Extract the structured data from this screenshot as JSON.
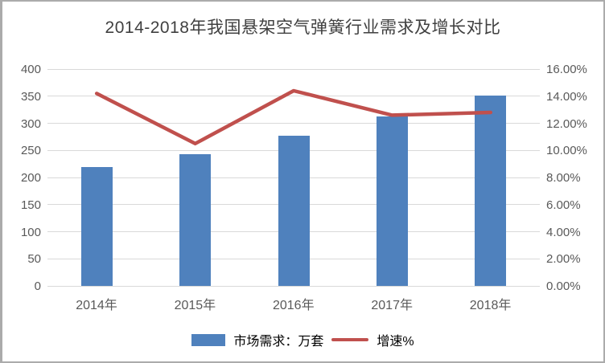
{
  "title": "2014-2018年我国悬架空气弹簧行业需求及增长对比",
  "colors": {
    "bar": "#4F81BD",
    "line": "#C0504D",
    "grid": "#D9D9D9",
    "axis_text": "#595959",
    "title_text": "#404040",
    "border": "#ABABAB"
  },
  "chart_data": {
    "type": "bar+line combo",
    "title": "2014-2018年我国悬架空气弹簧行业需求及增长对比",
    "categories": [
      "2014年",
      "2015年",
      "2016年",
      "2017年",
      "2018年"
    ],
    "series": [
      {
        "name": "市场需求：万套",
        "type": "bar",
        "axis": "left",
        "values": [
          220,
          243,
          277,
          312,
          351
        ]
      },
      {
        "name": "增速%",
        "type": "line",
        "axis": "right",
        "values": [
          14.2,
          10.5,
          14.4,
          12.6,
          12.8
        ]
      }
    ],
    "left_axis": {
      "min": 0,
      "max": 400,
      "step": 50,
      "ticks": [
        "400",
        "350",
        "300",
        "250",
        "200",
        "150",
        "100",
        "50",
        "0"
      ]
    },
    "right_axis": {
      "min": 0,
      "max": 16,
      "step": 2,
      "ticks": [
        "16.00%",
        "14.00%",
        "12.00%",
        "10.00%",
        "8.00%",
        "6.00%",
        "4.00%",
        "2.00%",
        "0.00%"
      ]
    },
    "grid": true,
    "legend_position": "bottom"
  },
  "legend": {
    "demand_label": "市场需求：万套",
    "growth_label": "增速%"
  }
}
